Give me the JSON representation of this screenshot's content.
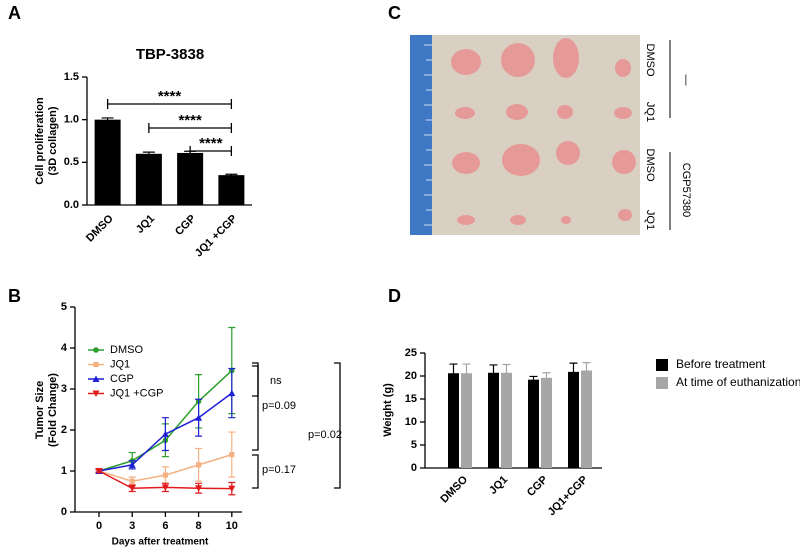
{
  "panels": {
    "a": "A",
    "b": "B",
    "c": "C",
    "d": "D"
  },
  "photo": {
    "row_labels": [
      "DMSO",
      "JQ1",
      "DMSO",
      "JQ1"
    ],
    "group_labels": [
      "—",
      "CGP57380"
    ]
  },
  "chart_data": [
    {
      "type": "bar",
      "title": "TBP-3838",
      "ylabel": [
        "Cell proliferation",
        "(3D collagen)"
      ],
      "categories": [
        "DMSO",
        "JQ1",
        "CGP",
        "JQ1 +CGP"
      ],
      "values": [
        1.0,
        0.6,
        0.61,
        0.35
      ],
      "errors": [
        0.02,
        0.02,
        0.02,
        0.01
      ],
      "color": "#000000",
      "ylim": [
        0,
        1.5
      ],
      "yticks": [
        {
          "value": 0,
          "label": "0.0"
        },
        0.5,
        {
          "value": 1,
          "label": "1.0"
        },
        1.5
      ],
      "annotations": [
        "****",
        "****",
        "****"
      ]
    },
    {
      "type": "line",
      "xlabel": "Days after treatment",
      "ylabel": [
        "Tumor Size",
        "(Fold Change)"
      ],
      "categories": [
        "0",
        "3",
        "6",
        "8",
        "10"
      ],
      "ylim": [
        0,
        5
      ],
      "yticks": [
        0,
        1,
        2,
        3,
        4,
        5
      ],
      "legend": "upper left",
      "series": [
        {
          "name": "DMSO",
          "color": "#2ca02c",
          "values": [
            1,
            1.25,
            1.75,
            2.7,
            3.45
          ],
          "errors": [
            0.05,
            0.2,
            0.4,
            0.65,
            1.05
          ]
        },
        {
          "name": "JQ1",
          "color": "#f4b183",
          "values": [
            1,
            0.75,
            0.9,
            1.15,
            1.4
          ],
          "errors": [
            0.05,
            0.1,
            0.2,
            0.4,
            0.55
          ]
        },
        {
          "name": "CGP",
          "color": "#1f1fd6",
          "values": [
            1,
            1.15,
            1.9,
            2.3,
            2.9
          ],
          "errors": [
            0.05,
            0.1,
            0.4,
            0.45,
            0.6
          ]
        },
        {
          "name": "JQ1 +CGP",
          "color": "#e31a1c",
          "values": [
            1,
            0.58,
            0.6,
            0.58,
            0.57
          ],
          "errors": [
            0.03,
            0.08,
            0.1,
            0.12,
            0.15
          ]
        }
      ],
      "annotations": [
        "ns",
        "p=0.09",
        "p=0.17",
        "p=0.02"
      ]
    },
    {
      "type": "grouped_bar",
      "ylabel": "Weight (g)",
      "categories": [
        "DMSO",
        "JQ1",
        "CGP",
        "JQ1+CGP"
      ],
      "ylim": [
        0,
        25
      ],
      "yticks": [
        0,
        5,
        10,
        15,
        20,
        25
      ],
      "legend": "right",
      "series": [
        {
          "name": "Before treatment",
          "color": "#000000",
          "values": [
            20.6,
            20.7,
            19.2,
            20.9
          ],
          "errors": [
            2,
            1.7,
            0.7,
            1.9
          ]
        },
        {
          "name": "At time of euthanization",
          "color": "#a6a6a6",
          "values": [
            20.6,
            20.7,
            19.6,
            21.2
          ],
          "errors": [
            2,
            1.8,
            1.1,
            1.7
          ]
        }
      ]
    }
  ]
}
